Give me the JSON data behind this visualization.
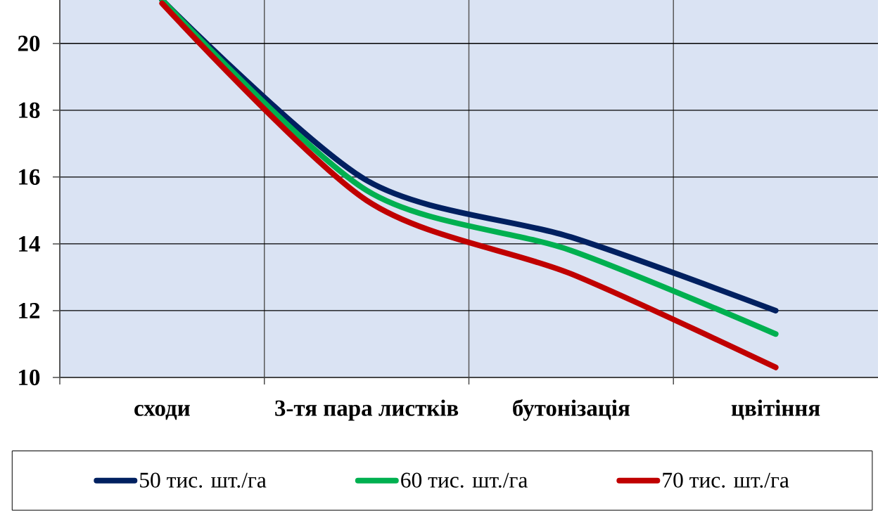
{
  "chart_data": {
    "type": "line",
    "categories": [
      "сходи",
      "3-тя пара листків",
      "бутонізація",
      "цвітіння"
    ],
    "series": [
      {
        "name": "50 тис. шт./га",
        "color": "#002060",
        "values": [
          21.3,
          15.9,
          14.2,
          12.0
        ]
      },
      {
        "name": "60 тис. шт./га",
        "color": "#00b050",
        "values": [
          21.3,
          15.6,
          13.8,
          11.3
        ]
      },
      {
        "name": "70 тис. шт./га",
        "color": "#c00000",
        "values": [
          21.2,
          15.3,
          13.1,
          10.3
        ]
      }
    ],
    "ylim": [
      10,
      21.3
    ],
    "yticks": [
      10,
      12,
      14,
      16,
      18,
      20
    ],
    "grid": true,
    "legend": "bottom",
    "line_style": "solid"
  }
}
